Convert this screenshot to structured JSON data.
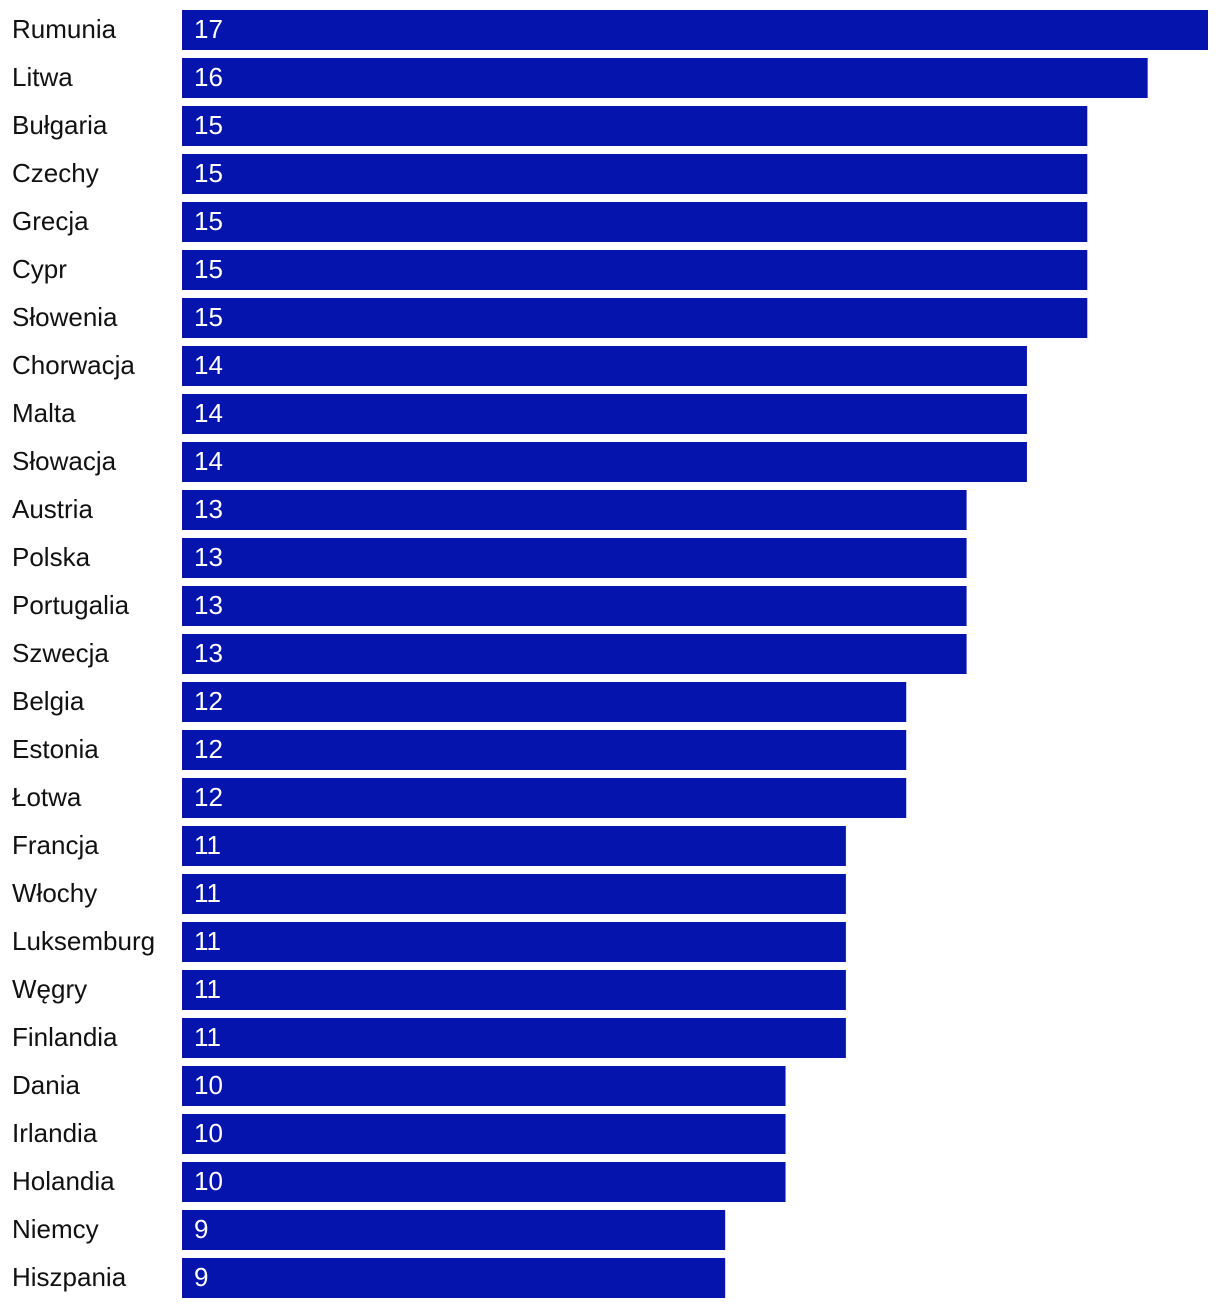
{
  "chart_data": {
    "type": "barh",
    "categories": [
      "Rumunia",
      "Litwa",
      "Bułgaria",
      "Czechy",
      "Grecja",
      "Cypr",
      "Słowenia",
      "Chorwacja",
      "Malta",
      "Słowacja",
      "Austria",
      "Polska",
      "Portugalia",
      "Szwecja",
      "Belgia",
      "Estonia",
      "Łotwa",
      "Francja",
      "Włochy",
      "Luksemburg",
      "Węgry",
      "Finlandia",
      "Dania",
      "Irlandia",
      "Holandia",
      "Niemcy",
      "Hiszpania"
    ],
    "values": [
      17,
      16,
      15,
      15,
      15,
      15,
      15,
      14,
      14,
      14,
      13,
      13,
      13,
      13,
      12,
      12,
      12,
      11,
      11,
      11,
      11,
      11,
      10,
      10,
      10,
      9,
      9
    ],
    "color": "#0414ad",
    "xlim": [
      0,
      17
    ]
  }
}
